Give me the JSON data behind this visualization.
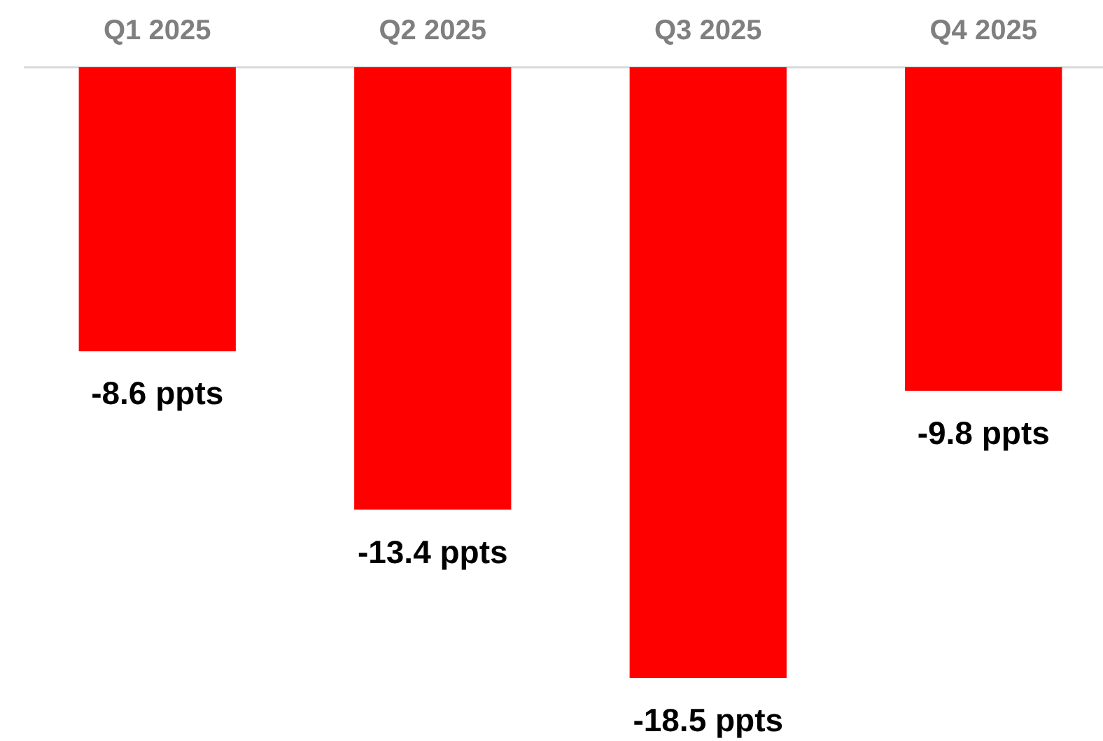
{
  "chart_data": {
    "type": "bar",
    "categories": [
      "Q1 2025",
      "Q2 2025",
      "Q3 2025",
      "Q4 2025"
    ],
    "values": [
      -8.6,
      -13.4,
      -18.5,
      -9.8
    ],
    "value_labels": [
      "-8.6 ppts",
      "-13.4 ppts",
      "-18.5 ppts",
      "-9.8 ppts"
    ],
    "color": "#ff0000"
  }
}
